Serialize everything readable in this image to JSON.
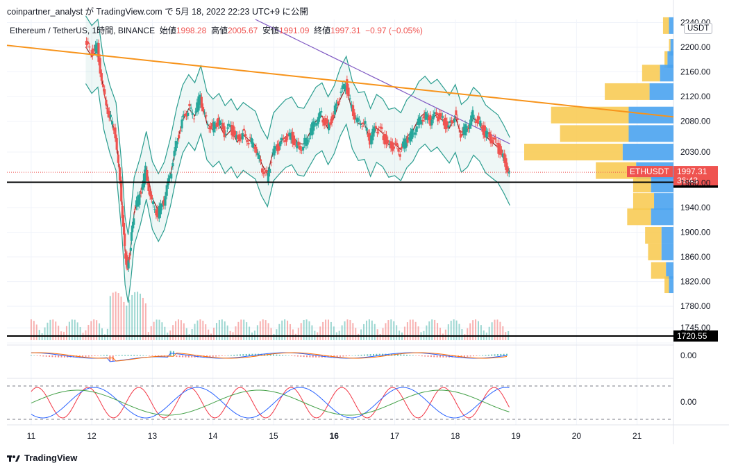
{
  "header": {
    "publish_line": "coinpartner_analyst が TradingView.com で 5月 18, 2022 22:23 UTC+9 に公開"
  },
  "legend": {
    "symbol": "Ethereum / TetherUS, 1時間, BINANCE",
    "open_label": "始値",
    "open_value": "1998.28",
    "high_label": "高値",
    "high_value": "2005.67",
    "low_label": "安値",
    "low_value": "1991.09",
    "close_label": "終値",
    "close_value": "1997.31",
    "change": "−0.97 (−0.05%)"
  },
  "footer": {
    "brand": "TradingView"
  },
  "chart_data": {
    "type": "candlestick",
    "symbol": "ETHUSDT",
    "unit": "USDT",
    "ylim": [
      1725,
      2245
    ],
    "yticks": [
      "2240.00",
      "2200.00",
      "2160.00",
      "2120.00",
      "2080.00",
      "2030.00",
      "1980.00",
      "1940.00",
      "1900.00",
      "1860.00",
      "1820.00",
      "1780.00",
      "1745.00",
      "1720.55"
    ],
    "xlim": [
      10.6,
      21.6
    ],
    "xticks": [
      {
        "x": 11,
        "label": "11"
      },
      {
        "x": 12,
        "label": "12"
      },
      {
        "x": 13,
        "label": "13"
      },
      {
        "x": 14,
        "label": "14"
      },
      {
        "x": 15,
        "label": "15"
      },
      {
        "x": 16,
        "label": "16"
      },
      {
        "x": 17,
        "label": "17"
      },
      {
        "x": 18,
        "label": "18"
      },
      {
        "x": 19,
        "label": "19"
      },
      {
        "x": 20,
        "label": "20"
      },
      {
        "x": 21,
        "label": "21"
      }
    ],
    "close_path": [
      [
        11.9,
        2205
      ],
      [
        12.0,
        2190
      ],
      [
        12.1,
        2200
      ],
      [
        12.2,
        2130
      ],
      [
        12.3,
        2090
      ],
      [
        12.4,
        2060
      ],
      [
        12.5,
        1950
      ],
      [
        12.55,
        1870
      ],
      [
        12.6,
        1840
      ],
      [
        12.65,
        1880
      ],
      [
        12.7,
        1930
      ],
      [
        12.8,
        1960
      ],
      [
        12.9,
        2000
      ],
      [
        13.0,
        1950
      ],
      [
        13.1,
        1930
      ],
      [
        13.2,
        1950
      ],
      [
        13.3,
        1990
      ],
      [
        13.4,
        2040
      ],
      [
        13.5,
        2080
      ],
      [
        13.6,
        2100
      ],
      [
        13.7,
        2090
      ],
      [
        13.8,
        2120
      ],
      [
        13.9,
        2080
      ],
      [
        14.0,
        2070
      ],
      [
        14.1,
        2080
      ],
      [
        14.2,
        2060
      ],
      [
        14.3,
        2070
      ],
      [
        14.4,
        2050
      ],
      [
        14.5,
        2060
      ],
      [
        14.6,
        2050
      ],
      [
        14.7,
        2040
      ],
      [
        14.8,
        2010
      ],
      [
        14.9,
        1990
      ],
      [
        15.0,
        2030
      ],
      [
        15.1,
        2040
      ],
      [
        15.2,
        2050
      ],
      [
        15.3,
        2055
      ],
      [
        15.4,
        2040
      ],
      [
        15.5,
        2040
      ],
      [
        15.6,
        2060
      ],
      [
        15.7,
        2080
      ],
      [
        15.8,
        2090
      ],
      [
        15.9,
        2070
      ],
      [
        16.0,
        2090
      ],
      [
        16.1,
        2120
      ],
      [
        16.2,
        2140
      ],
      [
        16.3,
        2100
      ],
      [
        16.4,
        2080
      ],
      [
        16.5,
        2080
      ],
      [
        16.6,
        2050
      ],
      [
        16.7,
        2070
      ],
      [
        16.8,
        2060
      ],
      [
        16.9,
        2040
      ],
      [
        17.0,
        2040
      ],
      [
        17.1,
        2030
      ],
      [
        17.2,
        2050
      ],
      [
        17.3,
        2060
      ],
      [
        17.4,
        2080
      ],
      [
        17.5,
        2090
      ],
      [
        17.6,
        2080
      ],
      [
        17.7,
        2090
      ],
      [
        17.8,
        2080
      ],
      [
        17.9,
        2070
      ],
      [
        18.0,
        2090
      ],
      [
        18.1,
        2060
      ],
      [
        18.2,
        2070
      ],
      [
        18.3,
        2090
      ],
      [
        18.4,
        2080
      ],
      [
        18.5,
        2060
      ],
      [
        18.6,
        2050
      ],
      [
        18.7,
        2040
      ],
      [
        18.8,
        2020
      ],
      [
        18.9,
        1997
      ]
    ],
    "horizontal_lines": [
      {
        "price": 1981.03,
        "label": "1981.03"
      },
      {
        "price": 1720.55,
        "label": "1720.55"
      }
    ],
    "trendline": {
      "from": [
        10.6,
        2203
      ],
      "to": [
        21.6,
        2087
      ]
    },
    "current_price": {
      "symbol": "ETHUSDT",
      "price": 1997.31,
      "price_label": "1997.31",
      "countdown": "36:43"
    },
    "volume_profile": [
      {
        "price": 2235,
        "up": 0.4,
        "down": 0.3
      },
      {
        "price": 2200,
        "up": 0.1,
        "down": 0.2
      },
      {
        "price": 2180,
        "up": 0.2,
        "down": 0.4
      },
      {
        "price": 2158,
        "up": 1.2,
        "down": 0.9
      },
      {
        "price": 2128,
        "up": 3.0,
        "down": 1.6
      },
      {
        "price": 2090,
        "up": 5.2,
        "down": 3.0
      },
      {
        "price": 2060,
        "up": 4.6,
        "down": 3.0
      },
      {
        "price": 2030,
        "up": 6.6,
        "down": 3.4
      },
      {
        "price": 2000,
        "up": 2.7,
        "down": 2.5
      },
      {
        "price": 1978,
        "up": 1.2,
        "down": 1.5
      },
      {
        "price": 1950,
        "up": 1.4,
        "down": 1.3
      },
      {
        "price": 1925,
        "up": 1.6,
        "down": 1.5
      },
      {
        "price": 1895,
        "up": 1.1,
        "down": 0.8
      },
      {
        "price": 1868,
        "up": 0.9,
        "down": 0.8
      },
      {
        "price": 1838,
        "up": 1.0,
        "down": 0.5
      },
      {
        "price": 1815,
        "up": 0.3,
        "down": 0.3
      }
    ],
    "macd_label": "0.00",
    "stoch_label": "0.00"
  },
  "colors": {
    "up": "#26a69a",
    "down": "#ef5350",
    "bb": "#2a9d8f",
    "trend": "#f7931a",
    "ma": "#7e57c2",
    "basis": "#8b1a1a",
    "vp_up": "#4aa3f0",
    "vp_down": "#f8c84b"
  }
}
